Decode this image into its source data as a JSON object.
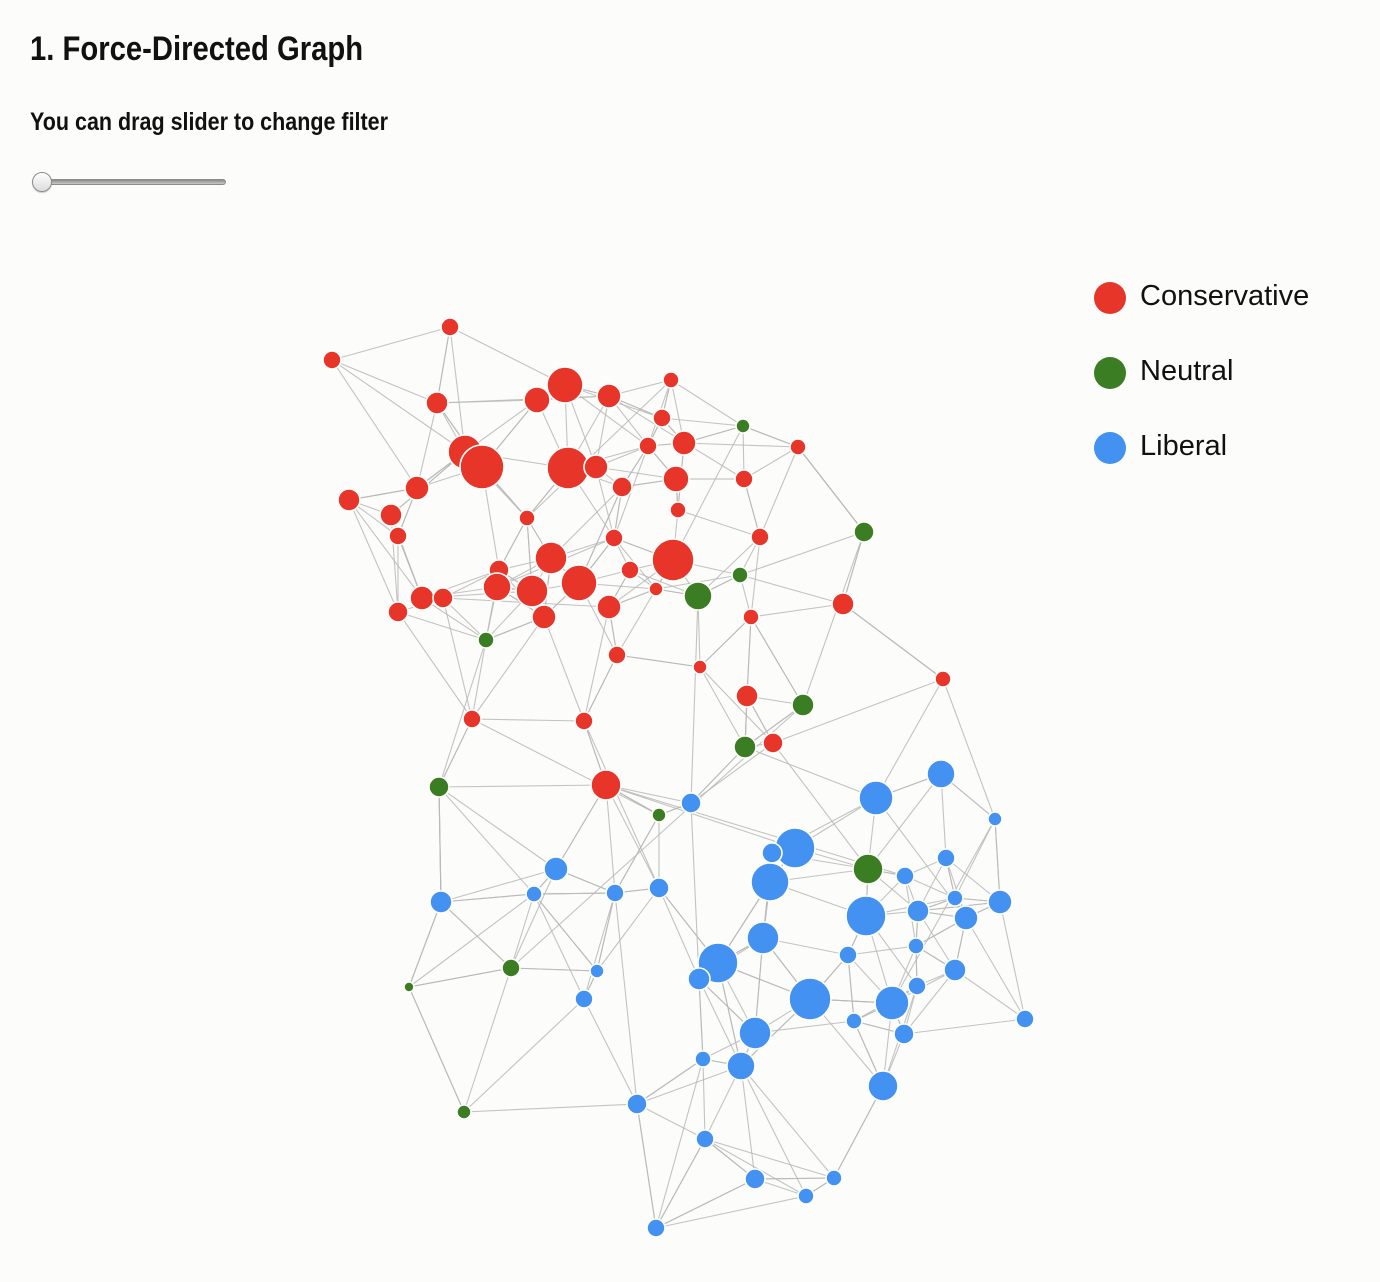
{
  "title": "1. Force-Directed Graph",
  "slider": {
    "hint": "You can drag slider to change filter",
    "value": 0
  },
  "colors": {
    "conservative": "#e8352a",
    "neutral": "#3b7d22",
    "liberal": "#4391f0",
    "link": "#b9b9b9"
  },
  "legend": {
    "items": [
      {
        "label": "Conservative",
        "color": "#e8352a"
      },
      {
        "label": "Neutral",
        "color": "#3b7d22"
      },
      {
        "label": "Liberal",
        "color": "#4391f0"
      }
    ]
  }
}
